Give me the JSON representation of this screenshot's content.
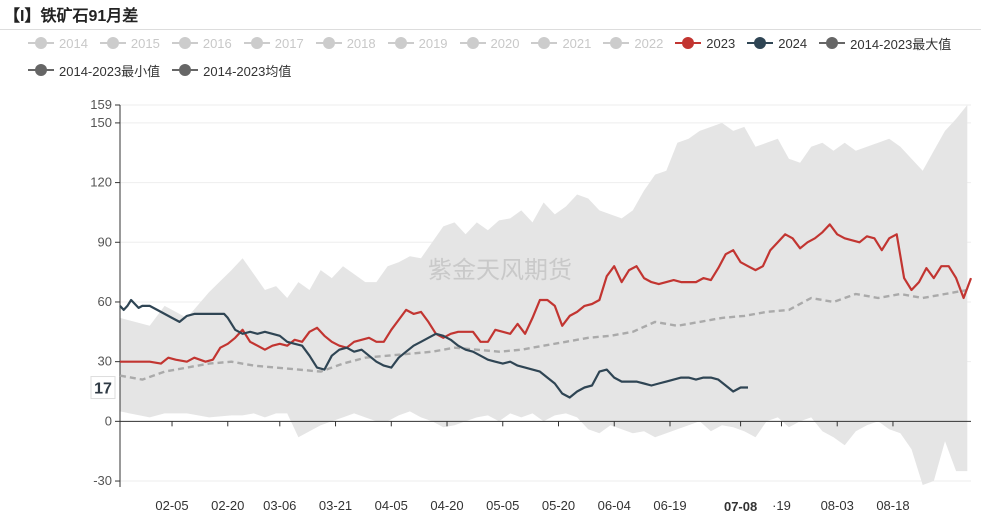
{
  "title": "【I】铁矿石91月差",
  "watermark": "紫金天风期货",
  "legend": [
    {
      "label": "2014",
      "color": "#cccccc",
      "active": false
    },
    {
      "label": "2015",
      "color": "#cccccc",
      "active": false
    },
    {
      "label": "2016",
      "color": "#cccccc",
      "active": false
    },
    {
      "label": "2017",
      "color": "#cccccc",
      "active": false
    },
    {
      "label": "2018",
      "color": "#cccccc",
      "active": false
    },
    {
      "label": "2019",
      "color": "#cccccc",
      "active": false
    },
    {
      "label": "2020",
      "color": "#cccccc",
      "active": false
    },
    {
      "label": "2021",
      "color": "#cccccc",
      "active": false
    },
    {
      "label": "2022",
      "color": "#cccccc",
      "active": false
    },
    {
      "label": "2023",
      "color": "#c23531",
      "active": true
    },
    {
      "label": "2024",
      "color": "#2f4554",
      "active": true
    },
    {
      "label": "2014-2023最大值",
      "color": "#666666",
      "active": true
    },
    {
      "label": "2014-2023最小值",
      "color": "#666666",
      "active": true
    },
    {
      "label": "2014-2023均值",
      "color": "#666666",
      "active": true
    }
  ],
  "chart_data": {
    "type": "line",
    "ylim": [
      -33,
      159
    ],
    "yticks": [
      -30,
      0,
      30,
      60,
      90,
      120,
      150
    ],
    "ymax_label": "159",
    "xticks": [
      {
        "label": "02-05",
        "day": 36
      },
      {
        "label": "02-20",
        "day": 51
      },
      {
        "label": "03-06",
        "day": 65
      },
      {
        "label": "03-21",
        "day": 80
      },
      {
        "label": "04-05",
        "day": 95
      },
      {
        "label": "04-20",
        "day": 110
      },
      {
        "label": "05-05",
        "day": 125
      },
      {
        "label": "05-20",
        "day": 140
      },
      {
        "label": "06-04",
        "day": 155
      },
      {
        "label": "06-19",
        "day": 170
      },
      {
        "label": "07-08",
        "day": 189,
        "highlight": true
      },
      {
        "label": "·19",
        "day": 200
      },
      {
        "label": "08-03",
        "day": 215
      },
      {
        "label": "08-18",
        "day": 230
      }
    ],
    "crosshair": {
      "x_label": "07-08",
      "y_label": "17",
      "y_value": 17
    },
    "series": [
      {
        "name": "2014-2023最大值",
        "color": "#e5e5e5",
        "x": [
          22,
          30,
          34,
          40,
          46,
          52,
          55,
          58,
          61,
          64,
          67,
          70,
          73,
          76,
          79,
          82,
          85,
          88,
          91,
          94,
          97,
          100,
          103,
          106,
          109,
          112,
          115,
          118,
          121,
          124,
          127,
          130,
          133,
          136,
          139,
          142,
          145,
          148,
          151,
          154,
          157,
          160,
          163,
          166,
          169,
          172,
          175,
          178,
          181,
          184,
          187,
          190,
          193,
          196,
          199,
          202,
          205,
          208,
          211,
          214,
          217,
          220,
          223,
          226,
          229,
          232,
          235,
          238,
          241,
          244,
          247,
          250
        ],
        "y": [
          52,
          48,
          58,
          52,
          65,
          76,
          82,
          74,
          66,
          68,
          62,
          70,
          66,
          76,
          72,
          78,
          74,
          70,
          70,
          78,
          80,
          83,
          82,
          90,
          98,
          100,
          94,
          100,
          96,
          101,
          102,
          106,
          100,
          110,
          104,
          108,
          114,
          112,
          106,
          104,
          102,
          106,
          116,
          124,
          126,
          140,
          142,
          146,
          148,
          150,
          146,
          148,
          138,
          140,
          142,
          132,
          130,
          138,
          140,
          136,
          140,
          136,
          138,
          140,
          142,
          138,
          132,
          126,
          136,
          146,
          152,
          159
        ]
      },
      {
        "name": "2014-2023最小值",
        "color": "#e5e5e5",
        "x": [
          22,
          30,
          34,
          40,
          46,
          52,
          55,
          58,
          61,
          64,
          67,
          70,
          73,
          76,
          79,
          82,
          85,
          88,
          91,
          94,
          97,
          100,
          103,
          106,
          109,
          112,
          115,
          118,
          121,
          124,
          127,
          130,
          133,
          136,
          139,
          142,
          145,
          148,
          151,
          154,
          157,
          160,
          163,
          166,
          169,
          172,
          175,
          178,
          181,
          184,
          187,
          190,
          193,
          196,
          199,
          202,
          205,
          208,
          211,
          214,
          217,
          220,
          223,
          226,
          229,
          232,
          235,
          238,
          241,
          244,
          247,
          250
        ],
        "y": [
          5,
          2,
          4,
          4,
          2,
          3,
          3,
          4,
          2,
          4,
          4,
          -8,
          -5,
          -2,
          0,
          2,
          4,
          2,
          0,
          0,
          3,
          5,
          2,
          0,
          -3,
          -2,
          0,
          2,
          3,
          0,
          4,
          2,
          4,
          0,
          3,
          4,
          2,
          -4,
          -6,
          -2,
          -4,
          -6,
          -5,
          -8,
          -6,
          -4,
          -2,
          0,
          -5,
          -2,
          -3,
          -5,
          -8,
          0,
          2,
          -3,
          0,
          2,
          -5,
          -8,
          -12,
          -5,
          -2,
          0,
          -4,
          -6,
          -14,
          -32,
          -30,
          -10,
          -25,
          -25
        ]
      },
      {
        "name": "2014-2023均值",
        "color": "#aaaaaa",
        "dashed": true,
        "x": [
          22,
          28,
          34,
          40,
          46,
          52,
          58,
          64,
          70,
          76,
          82,
          88,
          94,
          100,
          106,
          112,
          118,
          124,
          130,
          136,
          142,
          148,
          154,
          160,
          166,
          172,
          178,
          184,
          190,
          196,
          202,
          208,
          214,
          220,
          226,
          232,
          238,
          244,
          250
        ],
        "y": [
          23,
          21,
          25,
          27,
          29,
          30,
          28,
          27,
          26,
          25,
          29,
          32,
          33,
          34,
          35,
          37,
          36,
          35,
          36,
          38,
          40,
          42,
          43,
          45,
          50,
          48,
          50,
          52,
          53,
          55,
          56,
          62,
          60,
          64,
          62,
          64,
          62,
          64,
          66
        ]
      },
      {
        "name": "2023",
        "color": "#c23531",
        "x": [
          22,
          30,
          33,
          35,
          37,
          40,
          42,
          45,
          47,
          49,
          51,
          53,
          55,
          57,
          59,
          61,
          63,
          65,
          67,
          69,
          71,
          73,
          75,
          77,
          79,
          81,
          83,
          85,
          87,
          89,
          91,
          93,
          95,
          97,
          99,
          101,
          103,
          105,
          107,
          109,
          111,
          113,
          115,
          117,
          119,
          121,
          123,
          125,
          127,
          129,
          131,
          133,
          135,
          137,
          139,
          141,
          143,
          145,
          147,
          149,
          151,
          153,
          155,
          157,
          159,
          161,
          163,
          165,
          167,
          169,
          171,
          173,
          175,
          177,
          179,
          181,
          183,
          185,
          187,
          189,
          191,
          193,
          195,
          197,
          199,
          201,
          203,
          205,
          207,
          209,
          211,
          213,
          215,
          217,
          219,
          221,
          223,
          225,
          227,
          229,
          231,
          233,
          235,
          237,
          239,
          241,
          243,
          245,
          247,
          249,
          251
        ],
        "y": [
          30,
          30,
          29,
          32,
          31,
          30,
          32,
          30,
          31,
          37,
          39,
          42,
          46,
          40,
          38,
          36,
          38,
          39,
          38,
          41,
          40,
          45,
          47,
          43,
          40,
          38,
          37,
          40,
          41,
          42,
          40,
          40,
          46,
          51,
          56,
          54,
          55,
          50,
          44,
          42,
          44,
          45,
          45,
          45,
          40,
          40,
          46,
          45,
          44,
          49,
          44,
          52,
          61,
          61,
          58,
          48,
          53,
          55,
          58,
          59,
          61,
          73,
          78,
          70,
          76,
          78,
          72,
          70,
          69,
          70,
          71,
          70,
          70,
          70,
          72,
          71,
          77,
          84,
          86,
          80,
          78,
          76,
          78,
          86,
          90,
          94,
          92,
          87,
          90,
          92,
          95,
          99,
          94,
          92,
          91,
          90,
          93,
          92,
          86,
          92,
          94,
          72,
          66,
          70,
          77,
          72,
          78,
          78,
          72,
          62,
          72
        ]
      },
      {
        "name": "2024",
        "color": "#2f4554",
        "x": [
          22,
          23,
          24,
          25,
          26,
          27,
          28,
          30,
          32,
          34,
          36,
          38,
          40,
          42,
          44,
          46,
          48,
          50,
          51,
          53,
          55,
          57,
          59,
          61,
          63,
          65,
          67,
          69,
          71,
          73,
          75,
          77,
          79,
          81,
          83,
          85,
          87,
          89,
          91,
          93,
          95,
          97,
          99,
          101,
          103,
          105,
          107,
          109,
          111,
          113,
          115,
          117,
          119,
          121,
          123,
          125,
          127,
          129,
          131,
          133,
          135,
          137,
          139,
          141,
          143,
          145,
          147,
          149,
          151,
          153,
          155,
          157,
          159,
          161,
          163,
          165,
          167,
          169,
          171,
          173,
          175,
          177,
          179,
          181,
          183,
          185,
          187,
          189,
          191
        ],
        "y": [
          58,
          56,
          58,
          61,
          59,
          57,
          58,
          58,
          56,
          54,
          52,
          50,
          53,
          54,
          54,
          54,
          54,
          54,
          52,
          46,
          44,
          45,
          44,
          45,
          44,
          43,
          40,
          39,
          38,
          33,
          27,
          26,
          33,
          36,
          37,
          35,
          36,
          33,
          30,
          28,
          27,
          32,
          35,
          38,
          40,
          42,
          44,
          43,
          41,
          38,
          36,
          35,
          33,
          31,
          30,
          29,
          30,
          28,
          27,
          26,
          25,
          22,
          19,
          14,
          12,
          15,
          17,
          18,
          25,
          26,
          22,
          20,
          20,
          20,
          19,
          18,
          19,
          20,
          21,
          22,
          22,
          21,
          22,
          22,
          21,
          18,
          15,
          17,
          17
        ]
      }
    ]
  }
}
